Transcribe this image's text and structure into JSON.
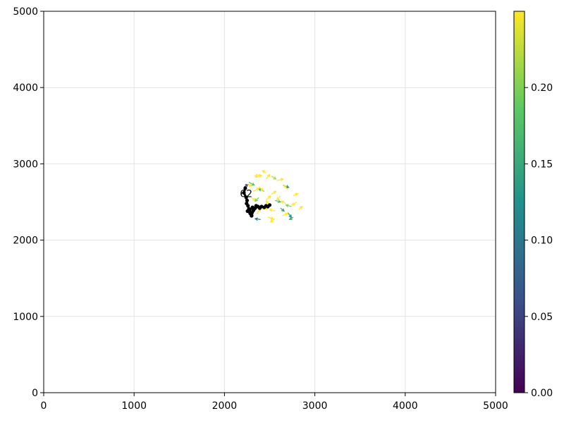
{
  "chart_data": {
    "type": "scatter",
    "title": "",
    "xlabel": "",
    "ylabel": "",
    "xlim": [
      0,
      5000
    ],
    "ylim": [
      0,
      5000
    ],
    "grid": true,
    "x_ticks": [
      "0",
      "1000",
      "2000",
      "3000",
      "4000",
      "5000"
    ],
    "y_ticks": [
      "0",
      "1000",
      "2000",
      "3000",
      "4000",
      "5000"
    ],
    "colorbar": {
      "range": [
        0,
        0.25
      ],
      "ticks": [
        "0.00",
        "0.05",
        "0.10",
        "0.15",
        "0.20"
      ],
      "colormap": "viridis",
      "colors": [
        "#440154",
        "#3b528b",
        "#21918c",
        "#5ec962",
        "#fde725"
      ]
    },
    "annotations": [
      {
        "text": "62",
        "x": 2240,
        "y": 2610
      }
    ],
    "trajectory": {
      "color": "#000000",
      "x": [
        2230,
        2215,
        2240,
        2250,
        2245,
        2260,
        2270,
        2255,
        2285,
        2300,
        2280,
        2310,
        2320,
        2290,
        2300,
        2330,
        2350,
        2340,
        2370,
        2390,
        2410,
        2440,
        2460,
        2480,
        2500
      ],
      "y": [
        2680,
        2620,
        2560,
        2520,
        2480,
        2450,
        2410,
        2380,
        2350,
        2320,
        2400,
        2430,
        2390,
        2350,
        2320,
        2410,
        2450,
        2420,
        2440,
        2420,
        2440,
        2430,
        2450,
        2440,
        2460
      ]
    },
    "vectors": [
      {
        "x": 2270,
        "y": 2760,
        "u": 60,
        "v": -40,
        "value": 0.18
      },
      {
        "x": 2340,
        "y": 2820,
        "u": 70,
        "v": 30,
        "value": 0.25
      },
      {
        "x": 2400,
        "y": 2860,
        "u": -60,
        "v": -20,
        "value": 0.25
      },
      {
        "x": 2460,
        "y": 2800,
        "u": 40,
        "v": 60,
        "value": 0.25
      },
      {
        "x": 2520,
        "y": 2840,
        "u": 50,
        "v": -40,
        "value": 0.22
      },
      {
        "x": 2580,
        "y": 2780,
        "u": 70,
        "v": 20,
        "value": 0.25
      },
      {
        "x": 2650,
        "y": 2720,
        "u": 60,
        "v": -30,
        "value": 0.12
      },
      {
        "x": 2700,
        "y": 2660,
        "u": -40,
        "v": 60,
        "value": 0.25
      },
      {
        "x": 2760,
        "y": 2580,
        "u": 50,
        "v": 30,
        "value": 0.25
      },
      {
        "x": 2800,
        "y": 2500,
        "u": -50,
        "v": -40,
        "value": 0.25
      },
      {
        "x": 2820,
        "y": 2400,
        "u": 40,
        "v": 40,
        "value": 0.25
      },
      {
        "x": 2740,
        "y": 2440,
        "u": -60,
        "v": 20,
        "value": 0.2
      },
      {
        "x": 2700,
        "y": 2360,
        "u": 40,
        "v": -60,
        "value": 0.12
      },
      {
        "x": 2640,
        "y": 2320,
        "u": 60,
        "v": 30,
        "value": 0.25
      },
      {
        "x": 2560,
        "y": 2280,
        "u": -50,
        "v": -40,
        "value": 0.25
      },
      {
        "x": 2480,
        "y": 2300,
        "u": 60,
        "v": -20,
        "value": 0.25
      },
      {
        "x": 2400,
        "y": 2270,
        "u": -60,
        "v": 10,
        "value": 0.1
      },
      {
        "x": 2360,
        "y": 2350,
        "u": 40,
        "v": 60,
        "value": 0.25
      },
      {
        "x": 2420,
        "y": 2400,
        "u": 60,
        "v": 20,
        "value": 0.25
      },
      {
        "x": 2500,
        "y": 2460,
        "u": -40,
        "v": 50,
        "value": 0.25
      },
      {
        "x": 2560,
        "y": 2520,
        "u": 60,
        "v": -20,
        "value": 0.18
      },
      {
        "x": 2620,
        "y": 2580,
        "u": -40,
        "v": -50,
        "value": 0.25
      },
      {
        "x": 2520,
        "y": 2600,
        "u": 50,
        "v": 40,
        "value": 0.25
      },
      {
        "x": 2440,
        "y": 2640,
        "u": -60,
        "v": 30,
        "value": 0.16
      },
      {
        "x": 2380,
        "y": 2700,
        "u": 50,
        "v": -50,
        "value": 0.25
      },
      {
        "x": 2320,
        "y": 2640,
        "u": 60,
        "v": 40,
        "value": 0.25
      },
      {
        "x": 2300,
        "y": 2560,
        "u": 40,
        "v": -40,
        "value": 0.25
      },
      {
        "x": 2380,
        "y": 2560,
        "u": -40,
        "v": -50,
        "value": 0.2
      },
      {
        "x": 2460,
        "y": 2520,
        "u": 50,
        "v": 60,
        "value": 0.25
      },
      {
        "x": 2680,
        "y": 2480,
        "u": -50,
        "v": 30,
        "value": 0.25
      },
      {
        "x": 2620,
        "y": 2420,
        "u": 40,
        "v": -40,
        "value": 0.14
      },
      {
        "x": 2560,
        "y": 2380,
        "u": -60,
        "v": 20,
        "value": 0.25
      },
      {
        "x": 2220,
        "y": 2700,
        "u": 40,
        "v": 30,
        "value": 0.04
      },
      {
        "x": 2250,
        "y": 2730,
        "u": 50,
        "v": -20,
        "value": 0.25
      },
      {
        "x": 2760,
        "y": 2300,
        "u": -40,
        "v": -30,
        "value": 0.15
      },
      {
        "x": 2460,
        "y": 2880,
        "u": -40,
        "v": 30,
        "value": 0.25
      }
    ]
  }
}
